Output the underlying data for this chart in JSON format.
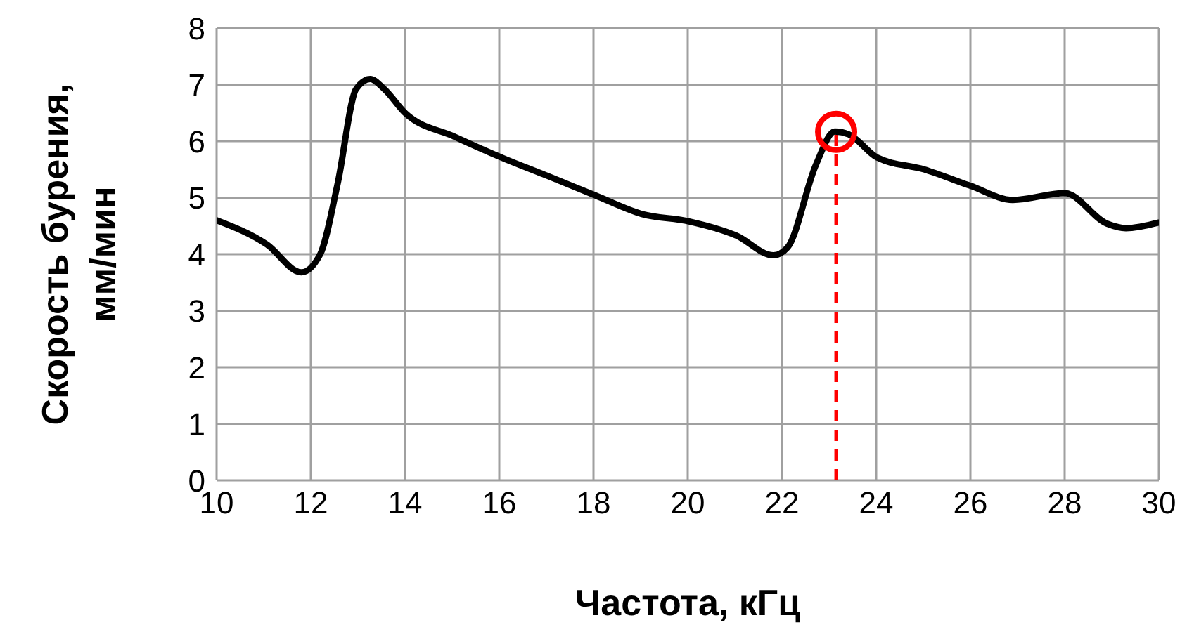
{
  "chart_data": {
    "type": "line",
    "xlabel": "Частота, кГц",
    "ylabel": "Скорость бурения,\nмм/мин",
    "xlim": [
      10,
      30
    ],
    "xticks": [
      10,
      12,
      14,
      16,
      18,
      20,
      22,
      24,
      26,
      28,
      30
    ],
    "ylim": [
      0,
      8
    ],
    "yticks": [
      0,
      1,
      2,
      3,
      4,
      5,
      6,
      7,
      8
    ],
    "grid": true,
    "legend": false,
    "marker": "none",
    "line_style": "solid",
    "x": [
      10,
      11.07,
      11.8,
      12.2,
      12.57,
      12.96,
      13.26,
      13.56,
      14.0,
      15.05,
      16.05,
      17.04,
      18.04,
      19.03,
      20.03,
      21.03,
      21.82,
      22.12,
      22.72,
      23.12,
      23.42,
      24.02,
      25.02,
      26.0,
      26.9,
      28.0,
      28.9,
      29.3,
      30
    ],
    "series": [
      {
        "color": "#000000",
        "values": [
          4.6,
          4.17,
          3.68,
          4.0,
          5.25,
          6.92,
          7.1,
          6.92,
          6.5,
          6.08,
          5.71,
          5.38,
          5.04,
          4.71,
          4.58,
          4.33,
          3.98,
          4.12,
          5.58,
          6.17,
          6.12,
          5.71,
          5.5,
          5.21,
          4.96,
          5.08,
          4.54,
          4.46,
          4.56
        ]
      }
    ],
    "ref_lines": [
      {
        "axis": "x",
        "value": 23.15,
        "color": "#ff0000",
        "line_style": "dashed"
      }
    ]
  }
}
